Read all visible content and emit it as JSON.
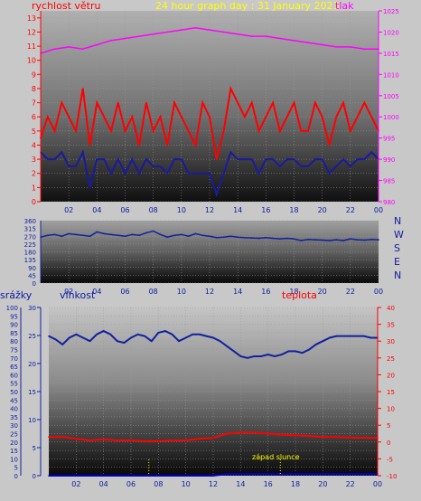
{
  "header": {
    "title": "24 hour graph day : 31 January 2023",
    "left_label": "rychlost větru",
    "right_label": "tlak"
  },
  "direction_letters": [
    "N",
    "W",
    "S",
    "E",
    "N"
  ],
  "bottom_labels": {
    "rain": "srážky",
    "humidity": "vlhkost",
    "temperature": "teplota",
    "sunset": "západ slunce"
  },
  "colors": {
    "wind": "#ff0000",
    "wind_low": "#1a1aa0",
    "pressure": "#ff00ff",
    "direction": "#1020a0",
    "humidity": "#1020a0",
    "temperature": "#ff0000",
    "rain": "#0000cc",
    "title": "#ffff00",
    "sunset": "#ffff00"
  },
  "chart_data": [
    {
      "type": "line",
      "name": "wind-and-pressure",
      "x_ticks": [
        "02",
        "04",
        "06",
        "08",
        "10",
        "12",
        "14",
        "16",
        "18",
        "20",
        "22",
        "00"
      ],
      "xlim": [
        0,
        24
      ],
      "y_left_ticks": [
        0,
        1,
        2,
        3,
        4,
        5,
        6,
        7,
        8,
        9,
        10,
        11,
        12,
        13
      ],
      "ylim_left": [
        0,
        13.5
      ],
      "y_right_ticks": [
        980,
        985,
        990,
        995,
        1000,
        1005,
        1010,
        1015,
        1020,
        1025
      ],
      "ylim_right": [
        980,
        1025
      ],
      "series": [
        {
          "name": "rychlost větru",
          "axis": "left",
          "x": [
            0,
            0.5,
            1,
            1.5,
            2,
            2.5,
            3,
            3.5,
            4,
            4.5,
            5,
            5.5,
            6,
            6.5,
            7,
            7.5,
            8,
            8.5,
            9,
            9.5,
            10,
            10.5,
            11,
            11.5,
            12,
            12.5,
            13,
            13.5,
            14,
            14.5,
            15,
            15.5,
            16,
            16.5,
            17,
            17.5,
            18,
            18.5,
            19,
            19.5,
            20,
            20.5,
            21,
            21.5,
            22,
            22.5,
            23,
            23.5,
            24
          ],
          "values": [
            4.5,
            6,
            5,
            7,
            6,
            5,
            8,
            4,
            7,
            6,
            5,
            7,
            5,
            6,
            4,
            7,
            5,
            6,
            4,
            7,
            6,
            5,
            4,
            7,
            6,
            3,
            5,
            8,
            7,
            6,
            7,
            5,
            6,
            7,
            5,
            6,
            7,
            5,
            5,
            7,
            6,
            4,
            6,
            7,
            5,
            6,
            7,
            6,
            5
          ]
        },
        {
          "name": "wind-low",
          "axis": "left",
          "x": [
            0,
            0.5,
            1,
            1.5,
            2,
            2.5,
            3,
            3.5,
            4,
            4.5,
            5,
            5.5,
            6,
            6.5,
            7,
            7.5,
            8,
            8.5,
            9,
            9.5,
            10,
            10.5,
            11,
            11.5,
            12,
            12.5,
            13,
            13.5,
            14,
            14.5,
            15,
            15.5,
            16,
            16.5,
            17,
            17.5,
            18,
            18.5,
            19,
            19.5,
            20,
            20.5,
            21,
            21.5,
            22,
            22.5,
            23,
            23.5,
            24
          ],
          "values": [
            3.5,
            3,
            3,
            3.5,
            2.5,
            2.5,
            3.5,
            1,
            3,
            3,
            2,
            3,
            2,
            3,
            2,
            3,
            2.5,
            2.5,
            2,
            3,
            3,
            2,
            2,
            2,
            2,
            0.5,
            2,
            3.5,
            3,
            3,
            3,
            2,
            3,
            3,
            2.5,
            3,
            3,
            2.5,
            2.5,
            3,
            3,
            2,
            2.5,
            3,
            2.5,
            3,
            3,
            3.5,
            3
          ]
        },
        {
          "name": "tlak",
          "axis": "right",
          "x": [
            0,
            1,
            2,
            3,
            4,
            5,
            6,
            7,
            8,
            9,
            10,
            11,
            12,
            13,
            14,
            15,
            16,
            17,
            18,
            19,
            20,
            21,
            22,
            23,
            24
          ],
          "values": [
            1015,
            1016,
            1016.5,
            1016,
            1017,
            1018,
            1018.5,
            1019,
            1019.5,
            1020,
            1020.5,
            1021,
            1020.5,
            1020,
            1019.5,
            1019,
            1019,
            1018.5,
            1018,
            1017.5,
            1017,
            1016.5,
            1016.5,
            1016,
            1016
          ]
        }
      ]
    },
    {
      "type": "line",
      "name": "wind-direction",
      "x_ticks": [
        "02",
        "04",
        "06",
        "08",
        "10",
        "12",
        "14",
        "16",
        "18",
        "20",
        "22",
        "00"
      ],
      "xlim": [
        0,
        24
      ],
      "y_ticks": [
        0,
        45,
        90,
        135,
        180,
        225,
        270,
        315,
        360
      ],
      "ylim": [
        0,
        360
      ],
      "series": [
        {
          "name": "direction",
          "x": [
            0,
            0.5,
            1,
            1.5,
            2,
            2.5,
            3,
            3.5,
            4,
            4.5,
            5,
            5.5,
            6,
            6.5,
            7,
            7.5,
            8,
            8.5,
            9,
            9.5,
            10,
            10.5,
            11,
            11.5,
            12,
            12.5,
            13,
            13.5,
            14,
            14.5,
            15,
            15.5,
            16,
            16.5,
            17,
            17.5,
            18,
            18.5,
            19,
            19.5,
            20,
            20.5,
            21,
            21.5,
            22,
            22.5,
            23,
            23.5,
            24
          ],
          "values": [
            265,
            275,
            280,
            270,
            285,
            280,
            275,
            270,
            295,
            285,
            280,
            275,
            270,
            280,
            275,
            290,
            300,
            280,
            265,
            275,
            280,
            270,
            285,
            275,
            270,
            262,
            265,
            270,
            265,
            262,
            260,
            258,
            262,
            258,
            255,
            258,
            255,
            245,
            252,
            250,
            248,
            245,
            250,
            245,
            255,
            250,
            248,
            252,
            250
          ]
        }
      ]
    },
    {
      "type": "line",
      "name": "rain-humidity-temperature",
      "x_ticks": [
        "02",
        "04",
        "06",
        "08",
        "10",
        "12",
        "14",
        "16",
        "18",
        "20",
        "22",
        "00"
      ],
      "xlim": [
        0,
        24
      ],
      "y_rain_ticks": [
        0,
        5,
        10,
        15,
        20,
        25,
        30,
        35,
        40,
        45,
        50,
        55,
        60,
        65,
        70,
        75,
        80,
        85,
        90,
        95,
        100
      ],
      "ylim_rain": [
        0,
        100
      ],
      "y_humidity_ticks": [
        0,
        5,
        10,
        15,
        20,
        25,
        30
      ],
      "ylim_humidity": [
        0,
        30
      ],
      "y_temperature_ticks": [
        -10,
        -5,
        0,
        5,
        10,
        15,
        20,
        25,
        30,
        35,
        40
      ],
      "ylim_temperature": [
        -10,
        40
      ],
      "series": [
        {
          "name": "vlhkost",
          "axis": "rain",
          "x": [
            0,
            0.5,
            1,
            1.5,
            2,
            2.5,
            3,
            3.5,
            4,
            4.5,
            5,
            5.5,
            6,
            6.5,
            7,
            7.5,
            8,
            8.5,
            9,
            9.5,
            10,
            10.5,
            11,
            11.5,
            12,
            12.5,
            13,
            13.5,
            14,
            14.5,
            15,
            15.5,
            16,
            16.5,
            17,
            17.5,
            18,
            18.5,
            19,
            19.5,
            20,
            20.5,
            21,
            21.5,
            22,
            22.5,
            23,
            23.5,
            24
          ],
          "values": [
            83,
            81,
            78,
            82,
            84,
            82,
            80,
            84,
            86,
            84,
            80,
            79,
            82,
            84,
            83,
            80,
            85,
            86,
            84,
            80,
            82,
            84,
            84,
            83,
            82,
            80,
            77,
            74,
            71,
            70,
            71,
            71,
            72,
            71,
            72,
            74,
            74,
            73,
            75,
            78,
            80,
            82,
            83,
            83,
            83,
            83,
            83,
            82,
            82
          ]
        },
        {
          "name": "teplota",
          "axis": "temperature",
          "x": [
            0,
            1,
            2,
            3,
            4,
            5,
            6,
            7,
            8,
            9,
            10,
            11,
            12,
            13,
            14,
            15,
            16,
            17,
            18,
            19,
            20,
            21,
            22,
            23,
            24
          ],
          "values": [
            1.5,
            1.5,
            1.0,
            0.5,
            0.8,
            0.5,
            0.5,
            0.2,
            0.3,
            0.5,
            0.5,
            1.0,
            1.2,
            2.5,
            2.8,
            2.8,
            2.5,
            2.2,
            2.0,
            1.8,
            1.5,
            1.5,
            1.3,
            1.3,
            1.2
          ]
        },
        {
          "name": "srážky",
          "axis": "rain",
          "x": [
            0,
            2,
            4,
            6,
            8,
            10,
            12,
            13,
            14,
            16,
            18,
            20,
            22,
            24
          ],
          "values": [
            0,
            0,
            0,
            0,
            0,
            0,
            0,
            1,
            1,
            1,
            1,
            1,
            1,
            1
          ]
        }
      ],
      "markers": [
        {
          "x": 7.3,
          "label": ""
        },
        {
          "x": 16.9,
          "label": "západ slunce"
        }
      ]
    }
  ]
}
